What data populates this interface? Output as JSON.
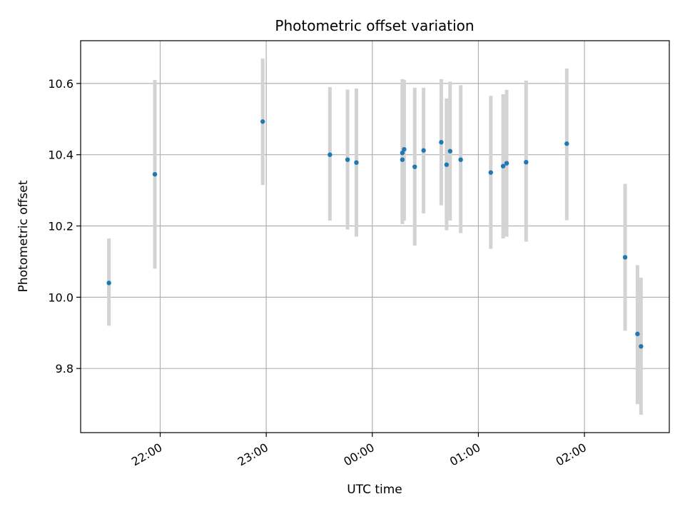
{
  "chart_data": {
    "type": "scatter",
    "title": "Photometric offset variation",
    "xlabel": "UTC time",
    "ylabel": "Photometric offset",
    "x_unit": "UTC time (HH:MM)",
    "xlim": [
      "21:15",
      "02:48"
    ],
    "ylim": [
      9.62,
      10.72
    ],
    "x_ticks": [
      "22:00",
      "23:00",
      "00:00",
      "01:00",
      "02:00"
    ],
    "y_ticks": [
      9.8,
      10.0,
      10.2,
      10.4,
      10.6
    ],
    "y_tick_labels": [
      "9.8",
      "10.0",
      "10.2",
      "10.4",
      "10.6"
    ],
    "grid": true,
    "colors": {
      "point": "#1f77b4",
      "errorbar": "#d3d3d3",
      "grid": "#b0b0b0"
    },
    "series": [
      {
        "points": [
          {
            "x": "21:31",
            "y": 10.04,
            "ylo": 9.92,
            "yhi": 10.165
          },
          {
            "x": "21:57",
            "y": 10.345,
            "ylo": 10.08,
            "yhi": 10.61
          },
          {
            "x": "22:58",
            "y": 10.493,
            "ylo": 10.315,
            "yhi": 10.67
          },
          {
            "x": "23:36",
            "y": 10.4,
            "ylo": 10.215,
            "yhi": 10.59
          },
          {
            "x": "23:46",
            "y": 10.386,
            "ylo": 10.19,
            "yhi": 10.583
          },
          {
            "x": "23:51",
            "y": 10.378,
            "ylo": 10.17,
            "yhi": 10.586
          },
          {
            "x": "00:17",
            "y": 10.386,
            "ylo": 10.205,
            "yhi": 10.612
          },
          {
            "x": "00:17",
            "y": 10.405,
            "ylo": 10.21,
            "yhi": 10.6
          },
          {
            "x": "00:18",
            "y": 10.415,
            "ylo": 10.215,
            "yhi": 10.61
          },
          {
            "x": "00:24",
            "y": 10.366,
            "ylo": 10.145,
            "yhi": 10.588
          },
          {
            "x": "00:29",
            "y": 10.412,
            "ylo": 10.235,
            "yhi": 10.588
          },
          {
            "x": "00:39",
            "y": 10.435,
            "ylo": 10.258,
            "yhi": 10.612
          },
          {
            "x": "00:42",
            "y": 10.372,
            "ylo": 10.188,
            "yhi": 10.558
          },
          {
            "x": "00:44",
            "y": 10.41,
            "ylo": 10.215,
            "yhi": 10.605
          },
          {
            "x": "00:50",
            "y": 10.386,
            "ylo": 10.18,
            "yhi": 10.595
          },
          {
            "x": "01:07",
            "y": 10.35,
            "ylo": 10.136,
            "yhi": 10.565
          },
          {
            "x": "01:14",
            "y": 10.368,
            "ylo": 10.165,
            "yhi": 10.57
          },
          {
            "x": "01:16",
            "y": 10.376,
            "ylo": 10.17,
            "yhi": 10.582
          },
          {
            "x": "01:27",
            "y": 10.379,
            "ylo": 10.156,
            "yhi": 10.608
          },
          {
            "x": "01:50",
            "y": 10.431,
            "ylo": 10.216,
            "yhi": 10.642
          },
          {
            "x": "02:23",
            "y": 10.112,
            "ylo": 9.906,
            "yhi": 10.318
          },
          {
            "x": "02:30",
            "y": 9.897,
            "ylo": 9.7,
            "yhi": 10.09
          },
          {
            "x": "02:32",
            "y": 9.862,
            "ylo": 9.67,
            "yhi": 10.055
          }
        ]
      }
    ]
  }
}
